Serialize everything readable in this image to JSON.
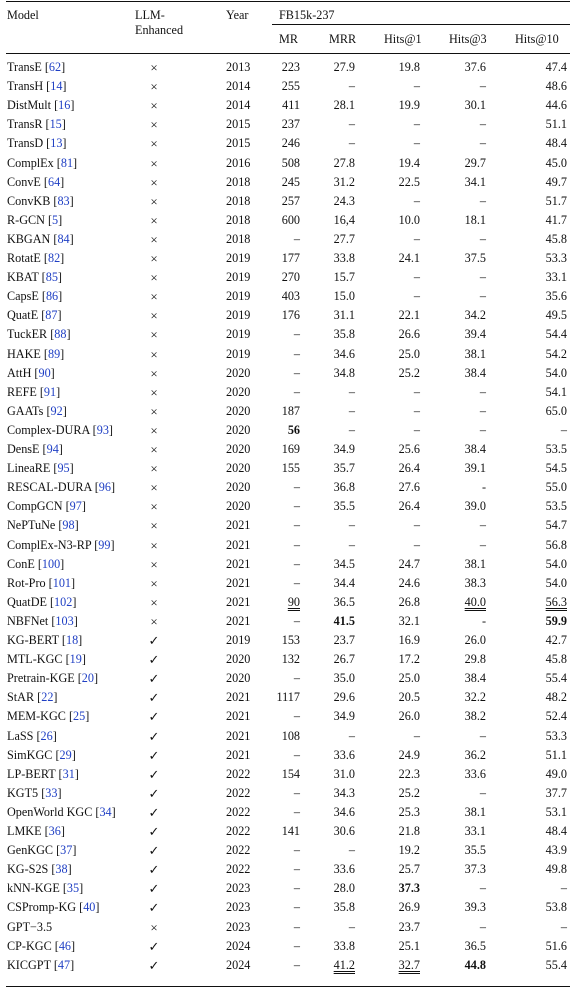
{
  "header": {
    "model": "Model",
    "llm_line1": "LLM-",
    "llm_line2": "Enhanced",
    "year": "Year",
    "dataset": "FB15k-237",
    "metrics": [
      "MR",
      "MRR",
      "Hits@1",
      "Hits@3",
      "Hits@10"
    ]
  },
  "rows": [
    {
      "model": "TransE",
      "ref": "62",
      "llm": "×",
      "year": "2013",
      "mr": "223",
      "mrr": "27.9",
      "h1": "19.8",
      "h3": "37.6",
      "h10": "47.4"
    },
    {
      "model": "TransH",
      "ref": "14",
      "llm": "×",
      "year": "2014",
      "mr": "255",
      "mrr": "–",
      "h1": "–",
      "h3": "–",
      "h10": "48.6"
    },
    {
      "model": "DistMult",
      "ref": "16",
      "llm": "×",
      "year": "2014",
      "mr": "411",
      "mrr": "28.1",
      "h1": "19.9",
      "h3": "30.1",
      "h10": "44.6"
    },
    {
      "model": "TransR",
      "ref": "15",
      "llm": "×",
      "year": "2015",
      "mr": "237",
      "mrr": "–",
      "h1": "–",
      "h3": "–",
      "h10": "51.1"
    },
    {
      "model": "TransD",
      "ref": "13",
      "llm": "×",
      "year": "2015",
      "mr": "246",
      "mrr": "–",
      "h1": "–",
      "h3": "–",
      "h10": "48.4"
    },
    {
      "model": "ComplEx",
      "ref": "81",
      "llm": "×",
      "year": "2016",
      "mr": "508",
      "mrr": "27.8",
      "h1": "19.4",
      "h3": "29.7",
      "h10": "45.0"
    },
    {
      "model": "ConvE",
      "ref": "64",
      "llm": "×",
      "year": "2018",
      "mr": "245",
      "mrr": "31.2",
      "h1": "22.5",
      "h3": "34.1",
      "h10": "49.7"
    },
    {
      "model": "ConvKB",
      "ref": "83",
      "llm": "×",
      "year": "2018",
      "mr": "257",
      "mrr": "24.3",
      "h1": "–",
      "h3": "–",
      "h10": "51.7"
    },
    {
      "model": "R-GCN",
      "ref": "5",
      "llm": "×",
      "year": "2018",
      "mr": "600",
      "mrr": "16,4",
      "h1": "10.0",
      "h3": "18.1",
      "h10": "41.7"
    },
    {
      "model": "KBGAN",
      "ref": "84",
      "llm": "×",
      "year": "2018",
      "mr": "–",
      "mrr": "27.7",
      "h1": "–",
      "h3": "–",
      "h10": "45.8"
    },
    {
      "model": "RotatE",
      "ref": "82",
      "llm": "×",
      "year": "2019",
      "mr": "177",
      "mrr": "33.8",
      "h1": "24.1",
      "h3": "37.5",
      "h10": "53.3"
    },
    {
      "model": "KBAT",
      "ref": "85",
      "llm": "×",
      "year": "2019",
      "mr": "270",
      "mrr": "15.7",
      "h1": "–",
      "h3": "–",
      "h10": "33.1"
    },
    {
      "model": "CapsE",
      "ref": "86",
      "llm": "×",
      "year": "2019",
      "mr": "403",
      "mrr": "15.0",
      "h1": "–",
      "h3": "–",
      "h10": "35.6"
    },
    {
      "model": "QuatE",
      "ref": "87",
      "llm": "×",
      "year": "2019",
      "mr": "176",
      "mrr": "31.1",
      "h1": "22.1",
      "h3": "34.2",
      "h10": "49.5"
    },
    {
      "model": "TuckER",
      "ref": "88",
      "llm": "×",
      "year": "2019",
      "mr": "–",
      "mrr": "35.8",
      "h1": "26.6",
      "h3": "39.4",
      "h10": "54.4"
    },
    {
      "model": "HAKE",
      "ref": "89",
      "llm": "×",
      "year": "2019",
      "mr": "–",
      "mrr": "34.6",
      "h1": "25.0",
      "h3": "38.1",
      "h10": "54.2"
    },
    {
      "model": "AttH",
      "ref": "90",
      "llm": "×",
      "year": "2020",
      "mr": "–",
      "mrr": "34.8",
      "h1": "25.2",
      "h3": "38.4",
      "h10": "54.0"
    },
    {
      "model": "REFE",
      "ref": "91",
      "llm": "×",
      "year": "2020",
      "mr": "–",
      "mrr": "–",
      "h1": "–",
      "h3": "–",
      "h10": "54.1"
    },
    {
      "model": "GAATs",
      "ref": "92",
      "llm": "×",
      "year": "2020",
      "mr": "187",
      "mrr": "–",
      "h1": "–",
      "h3": "–",
      "h10": "65.0"
    },
    {
      "model": "Complex-DURA",
      "ref": "93",
      "llm": "×",
      "year": "2020",
      "mr": "56",
      "mrr": "–",
      "h1": "–",
      "h3": "–",
      "h10": "–",
      "bold": [
        "mr"
      ]
    },
    {
      "model": "DensE",
      "ref": "94",
      "llm": "×",
      "year": "2020",
      "mr": "169",
      "mrr": "34.9",
      "h1": "25.6",
      "h3": "38.4",
      "h10": "53.5"
    },
    {
      "model": "LineaRE",
      "ref": "95",
      "llm": "×",
      "year": "2020",
      "mr": "155",
      "mrr": "35.7",
      "h1": "26.4",
      "h3": "39.1",
      "h10": "54.5"
    },
    {
      "model": "RESCAL-DURA",
      "ref": "96",
      "llm": "×",
      "year": "2020",
      "mr": "–",
      "mrr": "36.8",
      "h1": "27.6",
      "h3": "-",
      "h10": "55.0"
    },
    {
      "model": "CompGCN",
      "ref": "97",
      "llm": "×",
      "year": "2020",
      "mr": "–",
      "mrr": "35.5",
      "h1": "26.4",
      "h3": "39.0",
      "h10": "53.5"
    },
    {
      "model": "NePTuNe",
      "ref": "98",
      "llm": "×",
      "year": "2021",
      "mr": "–",
      "mrr": "–",
      "h1": "–",
      "h3": "–",
      "h10": "54.7"
    },
    {
      "model": "ComplEx-N3-RP",
      "ref": "99",
      "llm": "×",
      "year": "2021",
      "mr": "–",
      "mrr": "–",
      "h1": "–",
      "h3": "–",
      "h10": "56.8"
    },
    {
      "model": "ConE",
      "ref": "100",
      "llm": "×",
      "year": "2021",
      "mr": "–",
      "mrr": "34.5",
      "h1": "24.7",
      "h3": "38.1",
      "h10": "54.0"
    },
    {
      "model": "Rot-Pro",
      "ref": "101",
      "llm": "×",
      "year": "2021",
      "mr": "–",
      "mrr": "34.4",
      "h1": "24.6",
      "h3": "38.3",
      "h10": "54.0"
    },
    {
      "model": "QuatDE",
      "ref": "102",
      "llm": "×",
      "year": "2021",
      "mr": "90",
      "mrr": "36.5",
      "h1": "26.8",
      "h3": "40.0",
      "h10": "56.3",
      "under": [
        "mr",
        "h3",
        "h10"
      ]
    },
    {
      "model": "NBFNet",
      "ref": "103",
      "llm": "×",
      "year": "2021",
      "mr": "–",
      "mrr": "41.5",
      "h1": "32.1",
      "h3": "-",
      "h10": "59.9",
      "bold": [
        "mrr",
        "h10"
      ]
    },
    {
      "model": "KG-BERT",
      "ref": "18",
      "llm": "✓",
      "year": "2019",
      "mr": "153",
      "mrr": "23.7",
      "h1": "16.9",
      "h3": "26.0",
      "h10": "42.7"
    },
    {
      "model": "MTL-KGC",
      "ref": "19",
      "llm": "✓",
      "year": "2020",
      "mr": "132",
      "mrr": "26.7",
      "h1": "17.2",
      "h3": "29.8",
      "h10": "45.8"
    },
    {
      "model": "Pretrain-KGE",
      "ref": "20",
      "llm": "✓",
      "year": "2020",
      "mr": "–",
      "mrr": "35.0",
      "h1": "25.0",
      "h3": "38.4",
      "h10": "55.4"
    },
    {
      "model": "StAR",
      "ref": "22",
      "llm": "✓",
      "year": "2021",
      "mr": "1117",
      "mrr": "29.6",
      "h1": "20.5",
      "h3": "32.2",
      "h10": "48.2"
    },
    {
      "model": "MEM-KGC",
      "ref": "25",
      "llm": "✓",
      "year": "2021",
      "mr": "–",
      "mrr": "34.9",
      "h1": "26.0",
      "h3": "38.2",
      "h10": "52.4"
    },
    {
      "model": "LaSS",
      "ref": "26",
      "llm": "✓",
      "year": "2021",
      "mr": "108",
      "mrr": "–",
      "h1": "–",
      "h3": "–",
      "h10": "53.3"
    },
    {
      "model": "SimKGC",
      "ref": "29",
      "llm": "✓",
      "year": "2021",
      "mr": "–",
      "mrr": "33.6",
      "h1": "24.9",
      "h3": "36.2",
      "h10": "51.1"
    },
    {
      "model": "LP-BERT",
      "ref": "31",
      "llm": "✓",
      "year": "2022",
      "mr": "154",
      "mrr": "31.0",
      "h1": "22.3",
      "h3": "33.6",
      "h10": "49.0"
    },
    {
      "model": "KGT5",
      "ref": "33",
      "llm": "✓",
      "year": "2022",
      "mr": "–",
      "mrr": "34.3",
      "h1": "25.2",
      "h3": "–",
      "h10": "37.7"
    },
    {
      "model": "OpenWorld KGC",
      "ref": "34",
      "llm": "✓",
      "year": "2022",
      "mr": "–",
      "mrr": "34.6",
      "h1": "25.3",
      "h3": "38.1",
      "h10": "53.1"
    },
    {
      "model": "LMKE",
      "ref": "36",
      "llm": "✓",
      "year": "2022",
      "mr": "141",
      "mrr": "30.6",
      "h1": "21.8",
      "h3": "33.1",
      "h10": "48.4"
    },
    {
      "model": "GenKGC",
      "ref": "37",
      "llm": "✓",
      "year": "2022",
      "mr": "–",
      "mrr": "–",
      "h1": "19.2",
      "h3": "35.5",
      "h10": "43.9"
    },
    {
      "model": "KG-S2S",
      "ref": "38",
      "llm": "✓",
      "year": "2022",
      "mr": "–",
      "mrr": "33.6",
      "h1": "25.7",
      "h3": "37.3",
      "h10": "49.8"
    },
    {
      "model": "kNN-KGE",
      "ref": "35",
      "llm": "✓",
      "year": "2023",
      "mr": "–",
      "mrr": "28.0",
      "h1": "37.3",
      "h3": "–",
      "h10": "–",
      "bold": [
        "h1"
      ]
    },
    {
      "model": "CSPromp-KG",
      "ref": "40",
      "llm": "✓",
      "year": "2023",
      "mr": "–",
      "mrr": "35.8",
      "h1": "26.9",
      "h3": "39.3",
      "h10": "53.8"
    },
    {
      "model": "GPT−3.5",
      "ref": "",
      "llm": "×",
      "year": "2023",
      "mr": "–",
      "mrr": "–",
      "h1": "23.7",
      "h3": "–",
      "h10": "–"
    },
    {
      "model": "CP-KGC",
      "ref": "46",
      "llm": "✓",
      "year": "2024",
      "mr": "–",
      "mrr": "33.8",
      "h1": "25.1",
      "h3": "36.5",
      "h10": "51.6"
    },
    {
      "model": "KICGPT",
      "ref": "47",
      "llm": "✓",
      "year": "2024",
      "mr": "–",
      "mrr": "41.2",
      "h1": "32.7",
      "h3": "44.8",
      "h10": "55.4",
      "bold": [
        "h3"
      ],
      "under": [
        "mrr",
        "h1"
      ]
    }
  ]
}
